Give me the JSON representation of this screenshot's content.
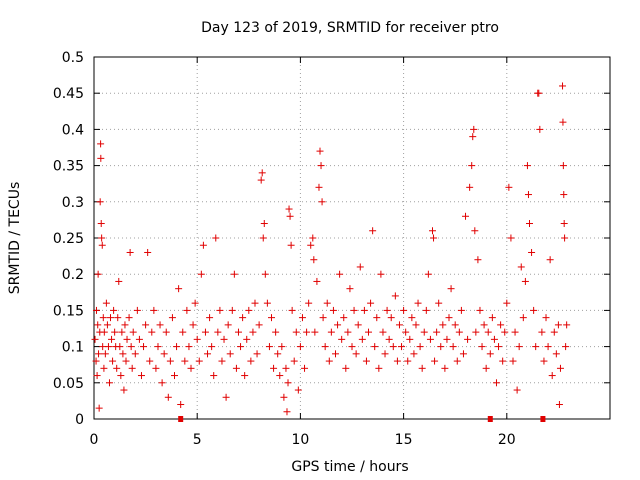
{
  "chart_data": {
    "type": "scatter",
    "title": "Day 123 of 2019, SRMTID for receiver ptro",
    "xlabel": "GPS time / hours",
    "ylabel": "SRMTID / TECUs",
    "xlim": [
      0,
      25
    ],
    "ylim": [
      0,
      0.5
    ],
    "grid": true,
    "x_ticks": [
      0,
      5,
      10,
      15,
      20
    ],
    "y_ticks": [
      0,
      0.05,
      0.1,
      0.15,
      0.2,
      0.25,
      0.3,
      0.35,
      0.4,
      0.45,
      0.5
    ],
    "x_tick_labels": [
      "0",
      "5",
      "10",
      "15",
      "20"
    ],
    "y_tick_labels": [
      "0",
      "0.05",
      "0.1",
      "0.15",
      "0.2",
      "0.25",
      "0.3",
      "0.35",
      "0.4",
      "0.45",
      "0.5"
    ],
    "marker": "+",
    "color": "#e00000",
    "series": [
      {
        "name": "SRMTID",
        "points": [
          [
            0.05,
            0.11
          ],
          [
            0.1,
            0.08
          ],
          [
            0.12,
            0.15
          ],
          [
            0.15,
            0.06
          ],
          [
            0.18,
            0.13
          ],
          [
            0.2,
            0.2
          ],
          [
            0.22,
            0.09
          ],
          [
            0.25,
            0.015
          ],
          [
            0.28,
            0.12
          ],
          [
            0.3,
            0.3
          ],
          [
            0.32,
            0.38
          ],
          [
            0.33,
            0.36
          ],
          [
            0.35,
            0.27
          ],
          [
            0.37,
            0.25
          ],
          [
            0.4,
            0.24
          ],
          [
            0.42,
            0.1
          ],
          [
            0.45,
            0.14
          ],
          [
            0.48,
            0.07
          ],
          [
            0.5,
            0.12
          ],
          [
            0.55,
            0.09
          ],
          [
            0.6,
            0.16
          ],
          [
            0.65,
            0.13
          ],
          [
            0.7,
            0.1
          ],
          [
            0.75,
            0.05
          ],
          [
            0.8,
            0.14
          ],
          [
            0.85,
            0.11
          ],
          [
            0.9,
            0.08
          ],
          [
            0.95,
            0.15
          ],
          [
            1.0,
            0.12
          ],
          [
            1.05,
            0.1
          ],
          [
            1.1,
            0.07
          ],
          [
            1.15,
            0.14
          ],
          [
            1.2,
            0.19
          ],
          [
            1.25,
            0.1
          ],
          [
            1.3,
            0.06
          ],
          [
            1.35,
            0.12
          ],
          [
            1.4,
            0.09
          ],
          [
            1.45,
            0.04
          ],
          [
            1.5,
            0.13
          ],
          [
            1.55,
            0.08
          ],
          [
            1.6,
            0.11
          ],
          [
            1.7,
            0.14
          ],
          [
            1.75,
            0.23
          ],
          [
            1.8,
            0.1
          ],
          [
            1.85,
            0.07
          ],
          [
            1.9,
            0.12
          ],
          [
            2.0,
            0.09
          ],
          [
            2.1,
            0.15
          ],
          [
            2.2,
            0.11
          ],
          [
            2.3,
            0.06
          ],
          [
            2.4,
            0.1
          ],
          [
            2.5,
            0.13
          ],
          [
            2.6,
            0.23
          ],
          [
            2.7,
            0.08
          ],
          [
            2.8,
            0.12
          ],
          [
            2.9,
            0.15
          ],
          [
            3.0,
            0.07
          ],
          [
            3.1,
            0.1
          ],
          [
            3.2,
            0.13
          ],
          [
            3.3,
            0.05
          ],
          [
            3.4,
            0.09
          ],
          [
            3.5,
            0.12
          ],
          [
            3.6,
            0.03
          ],
          [
            3.7,
            0.08
          ],
          [
            3.8,
            0.14
          ],
          [
            3.9,
            0.06
          ],
          [
            4.0,
            0.1
          ],
          [
            4.1,
            0.18
          ],
          [
            4.2,
            0.02
          ],
          [
            4.3,
            0.12
          ],
          [
            4.4,
            0.08
          ],
          [
            4.5,
            0.15
          ],
          [
            4.6,
            0.1
          ],
          [
            4.7,
            0.07
          ],
          [
            4.8,
            0.13
          ],
          [
            4.9,
            0.16
          ],
          [
            5.0,
            0.11
          ],
          [
            5.1,
            0.08
          ],
          [
            5.2,
            0.2
          ],
          [
            5.3,
            0.24
          ],
          [
            5.4,
            0.12
          ],
          [
            5.5,
            0.09
          ],
          [
            5.6,
            0.14
          ],
          [
            5.7,
            0.1
          ],
          [
            5.8,
            0.06
          ],
          [
            5.9,
            0.25
          ],
          [
            6.0,
            0.12
          ],
          [
            6.1,
            0.15
          ],
          [
            6.2,
            0.08
          ],
          [
            6.3,
            0.11
          ],
          [
            6.4,
            0.03
          ],
          [
            6.5,
            0.13
          ],
          [
            6.6,
            0.09
          ],
          [
            6.7,
            0.15
          ],
          [
            6.8,
            0.2
          ],
          [
            6.9,
            0.07
          ],
          [
            7.0,
            0.12
          ],
          [
            7.1,
            0.1
          ],
          [
            7.2,
            0.14
          ],
          [
            7.3,
            0.06
          ],
          [
            7.4,
            0.11
          ],
          [
            7.5,
            0.15
          ],
          [
            7.6,
            0.08
          ],
          [
            7.7,
            0.12
          ],
          [
            7.8,
            0.16
          ],
          [
            7.9,
            0.09
          ],
          [
            8.0,
            0.13
          ],
          [
            8.1,
            0.33
          ],
          [
            8.15,
            0.34
          ],
          [
            8.2,
            0.25
          ],
          [
            8.25,
            0.27
          ],
          [
            8.3,
            0.2
          ],
          [
            8.4,
            0.16
          ],
          [
            8.5,
            0.1
          ],
          [
            8.6,
            0.14
          ],
          [
            8.7,
            0.07
          ],
          [
            8.8,
            0.12
          ],
          [
            8.9,
            0.09
          ],
          [
            9.0,
            0.06
          ],
          [
            9.1,
            0.1
          ],
          [
            9.2,
            0.03
          ],
          [
            9.3,
            0.07
          ],
          [
            9.35,
            0.01
          ],
          [
            9.4,
            0.05
          ],
          [
            9.45,
            0.29
          ],
          [
            9.5,
            0.28
          ],
          [
            9.55,
            0.24
          ],
          [
            9.6,
            0.15
          ],
          [
            9.7,
            0.08
          ],
          [
            9.8,
            0.12
          ],
          [
            9.9,
            0.04
          ],
          [
            10.0,
            0.1
          ],
          [
            10.1,
            0.14
          ],
          [
            10.2,
            0.07
          ],
          [
            10.3,
            0.12
          ],
          [
            10.4,
            0.16
          ],
          [
            10.5,
            0.24
          ],
          [
            10.6,
            0.25
          ],
          [
            10.65,
            0.22
          ],
          [
            10.7,
            0.12
          ],
          [
            10.8,
            0.19
          ],
          [
            10.9,
            0.32
          ],
          [
            10.95,
            0.37
          ],
          [
            11.0,
            0.35
          ],
          [
            11.05,
            0.3
          ],
          [
            11.1,
            0.14
          ],
          [
            11.2,
            0.1
          ],
          [
            11.3,
            0.16
          ],
          [
            11.4,
            0.08
          ],
          [
            11.5,
            0.12
          ],
          [
            11.6,
            0.15
          ],
          [
            11.7,
            0.09
          ],
          [
            11.8,
            0.13
          ],
          [
            11.9,
            0.2
          ],
          [
            12.0,
            0.11
          ],
          [
            12.1,
            0.14
          ],
          [
            12.2,
            0.07
          ],
          [
            12.3,
            0.12
          ],
          [
            12.4,
            0.18
          ],
          [
            12.5,
            0.1
          ],
          [
            12.6,
            0.15
          ],
          [
            12.7,
            0.09
          ],
          [
            12.8,
            0.13
          ],
          [
            12.9,
            0.21
          ],
          [
            13.0,
            0.11
          ],
          [
            13.1,
            0.15
          ],
          [
            13.2,
            0.08
          ],
          [
            13.3,
            0.12
          ],
          [
            13.4,
            0.16
          ],
          [
            13.5,
            0.26
          ],
          [
            13.6,
            0.1
          ],
          [
            13.7,
            0.14
          ],
          [
            13.8,
            0.07
          ],
          [
            13.9,
            0.2
          ],
          [
            14.0,
            0.12
          ],
          [
            14.1,
            0.09
          ],
          [
            14.2,
            0.15
          ],
          [
            14.3,
            0.11
          ],
          [
            14.4,
            0.14
          ],
          [
            14.5,
            0.1
          ],
          [
            14.6,
            0.17
          ],
          [
            14.7,
            0.08
          ],
          [
            14.8,
            0.13
          ],
          [
            14.9,
            0.1
          ],
          [
            15.0,
            0.15
          ],
          [
            15.1,
            0.12
          ],
          [
            15.2,
            0.08
          ],
          [
            15.3,
            0.11
          ],
          [
            15.4,
            0.14
          ],
          [
            15.5,
            0.09
          ],
          [
            15.6,
            0.13
          ],
          [
            15.7,
            0.16
          ],
          [
            15.8,
            0.1
          ],
          [
            15.9,
            0.07
          ],
          [
            16.0,
            0.12
          ],
          [
            16.1,
            0.15
          ],
          [
            16.2,
            0.2
          ],
          [
            16.3,
            0.11
          ],
          [
            16.4,
            0.26
          ],
          [
            16.45,
            0.25
          ],
          [
            16.5,
            0.08
          ],
          [
            16.6,
            0.12
          ],
          [
            16.7,
            0.16
          ],
          [
            16.8,
            0.1
          ],
          [
            16.9,
            0.13
          ],
          [
            17.0,
            0.07
          ],
          [
            17.1,
            0.11
          ],
          [
            17.2,
            0.14
          ],
          [
            17.3,
            0.18
          ],
          [
            17.4,
            0.1
          ],
          [
            17.5,
            0.13
          ],
          [
            17.6,
            0.08
          ],
          [
            17.7,
            0.12
          ],
          [
            17.8,
            0.15
          ],
          [
            17.9,
            0.09
          ],
          [
            18.0,
            0.28
          ],
          [
            18.1,
            0.11
          ],
          [
            18.2,
            0.32
          ],
          [
            18.3,
            0.35
          ],
          [
            18.35,
            0.39
          ],
          [
            18.4,
            0.4
          ],
          [
            18.45,
            0.26
          ],
          [
            18.5,
            0.12
          ],
          [
            18.6,
            0.22
          ],
          [
            18.7,
            0.15
          ],
          [
            18.8,
            0.1
          ],
          [
            18.9,
            0.13
          ],
          [
            19.0,
            0.07
          ],
          [
            19.1,
            0.12
          ],
          [
            19.2,
            0.09
          ],
          [
            19.3,
            0.14
          ],
          [
            19.4,
            0.11
          ],
          [
            19.5,
            0.05
          ],
          [
            19.6,
            0.1
          ],
          [
            19.7,
            0.13
          ],
          [
            19.8,
            0.08
          ],
          [
            19.9,
            0.12
          ],
          [
            20.0,
            0.16
          ],
          [
            20.1,
            0.32
          ],
          [
            20.2,
            0.25
          ],
          [
            20.3,
            0.08
          ],
          [
            20.4,
            0.12
          ],
          [
            20.5,
            0.04
          ],
          [
            20.6,
            0.1
          ],
          [
            20.7,
            0.21
          ],
          [
            20.8,
            0.14
          ],
          [
            20.9,
            0.19
          ],
          [
            21.0,
            0.35
          ],
          [
            21.05,
            0.31
          ],
          [
            21.1,
            0.27
          ],
          [
            21.2,
            0.23
          ],
          [
            21.3,
            0.15
          ],
          [
            21.4,
            0.1
          ],
          [
            21.5,
            0.45
          ],
          [
            21.55,
            0.45
          ],
          [
            21.6,
            0.4
          ],
          [
            21.7,
            0.12
          ],
          [
            21.8,
            0.08
          ],
          [
            21.9,
            0.14
          ],
          [
            22.0,
            0.1
          ],
          [
            22.1,
            0.22
          ],
          [
            22.2,
            0.06
          ],
          [
            22.3,
            0.12
          ],
          [
            22.4,
            0.09
          ],
          [
            22.5,
            0.13
          ],
          [
            22.55,
            0.02
          ],
          [
            22.6,
            0.07
          ],
          [
            22.7,
            0.46
          ],
          [
            22.72,
            0.41
          ],
          [
            22.74,
            0.35
          ],
          [
            22.76,
            0.31
          ],
          [
            22.78,
            0.27
          ],
          [
            22.8,
            0.25
          ],
          [
            22.85,
            0.1
          ],
          [
            22.9,
            0.13
          ]
        ]
      }
    ]
  }
}
